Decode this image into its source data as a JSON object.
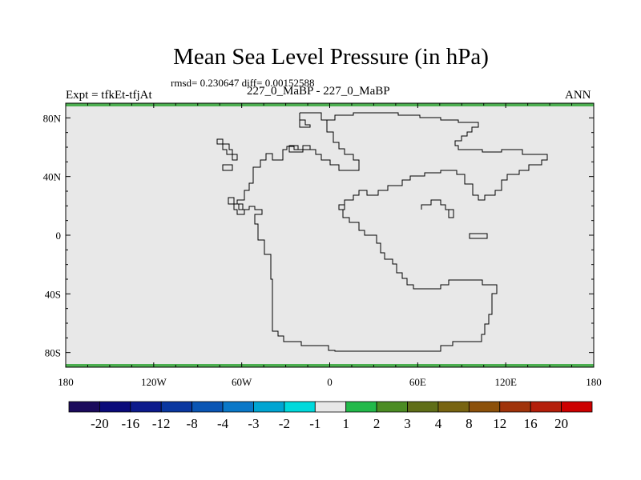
{
  "title": "Mean Sea Level Pressure (in hPa)",
  "stats": "rmsd= 0.230647 diff= 0.00152588",
  "expt_label": "Expt = tfkEt-tfjAt",
  "case_label": "227_0_MaBP - 227_0_MaBP",
  "season": "ANN",
  "colors": {
    "background": "#e8e8e8",
    "coast": "#000000",
    "band_edge": "#4caf50"
  },
  "lat_ticks": [
    "80N",
    "40N",
    "0",
    "40S",
    "80S"
  ],
  "lon_ticks": [
    "180",
    "120W",
    "60W",
    "0",
    "60E",
    "120E",
    "180"
  ],
  "colorbar": {
    "colors": [
      "#1b0a5c",
      "#0a0a7a",
      "#0c1a8c",
      "#0a37a0",
      "#0a55b4",
      "#0a78c8",
      "#00a5d2",
      "#00d9dc",
      "#e8e8e8",
      "#22b94a",
      "#4b8c23",
      "#5f6e18",
      "#786411",
      "#8c510a",
      "#a0330a",
      "#b41e0a",
      "#cd0000"
    ],
    "labels": [
      "-20",
      "-16",
      "-12",
      "-8",
      "-4",
      "-3",
      "-2",
      "-1",
      "1",
      "2",
      "3",
      "4",
      "8",
      "12",
      "16",
      "20"
    ]
  }
}
